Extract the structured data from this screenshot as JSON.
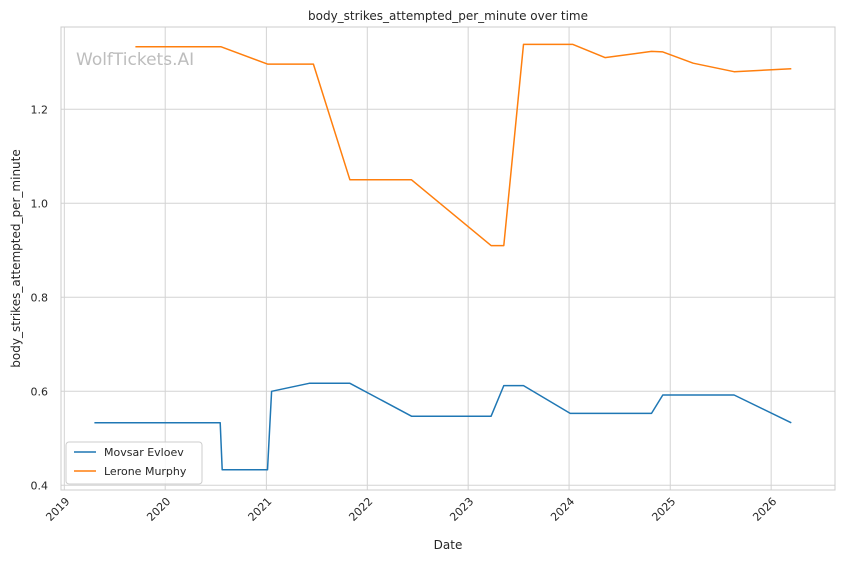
{
  "watermark": "WolfTickets.AI",
  "colors": {
    "grid": "#d3d3d3",
    "frame": "#cccccc",
    "text": "#262626",
    "watermark": "#bdbdbd"
  },
  "chart_data": {
    "type": "line",
    "title": "body_strikes_attempted_per_minute over time",
    "xlabel": "Date",
    "ylabel": "body_strikes_attempted_per_minute",
    "xlim": [
      "2018-12-20",
      "2026-08-20"
    ],
    "ylim": [
      0.39,
      1.375
    ],
    "grid": true,
    "legend_position": "lower-left",
    "x_ticks": [
      {
        "date": "2019-01-01",
        "label": "2019"
      },
      {
        "date": "2020-01-01",
        "label": "2020"
      },
      {
        "date": "2021-01-01",
        "label": "2021"
      },
      {
        "date": "2022-01-01",
        "label": "2022"
      },
      {
        "date": "2023-01-01",
        "label": "2023"
      },
      {
        "date": "2024-01-01",
        "label": "2024"
      },
      {
        "date": "2025-01-01",
        "label": "2025"
      },
      {
        "date": "2026-01-01",
        "label": "2026"
      }
    ],
    "y_ticks": [
      {
        "value": 0.4,
        "label": "0.4"
      },
      {
        "value": 0.6,
        "label": "0.6"
      },
      {
        "value": 0.8,
        "label": "0.8"
      },
      {
        "value": 1.0,
        "label": "1.0"
      },
      {
        "value": 1.2,
        "label": "1.2"
      }
    ],
    "series": [
      {
        "name": "Movsar Evloev",
        "color": "#1f77b4",
        "points": [
          [
            "2019-04-20",
            0.533
          ],
          [
            "2020-07-18",
            0.533
          ],
          [
            "2020-07-25",
            0.433
          ],
          [
            "2021-01-05",
            0.433
          ],
          [
            "2021-01-20",
            0.6
          ],
          [
            "2021-06-05",
            0.617
          ],
          [
            "2021-10-30",
            0.617
          ],
          [
            "2022-06-10",
            0.547
          ],
          [
            "2023-03-25",
            0.547
          ],
          [
            "2023-05-10",
            0.612
          ],
          [
            "2023-07-20",
            0.612
          ],
          [
            "2024-01-05",
            0.553
          ],
          [
            "2024-10-25",
            0.553
          ],
          [
            "2024-12-05",
            0.592
          ],
          [
            "2025-08-20",
            0.592
          ],
          [
            "2026-03-15",
            0.533
          ]
        ]
      },
      {
        "name": "Lerone Murphy",
        "color": "#ff7f0e",
        "points": [
          [
            "2019-09-15",
            1.333
          ],
          [
            "2020-07-20",
            1.333
          ],
          [
            "2021-01-05",
            1.296
          ],
          [
            "2021-06-20",
            1.296
          ],
          [
            "2021-10-30",
            1.05
          ],
          [
            "2022-06-10",
            1.05
          ],
          [
            "2023-03-25",
            0.91
          ],
          [
            "2023-05-10",
            0.91
          ],
          [
            "2023-07-20",
            1.338
          ],
          [
            "2024-01-15",
            1.338
          ],
          [
            "2024-05-10",
            1.31
          ],
          [
            "2024-10-25",
            1.323
          ],
          [
            "2024-12-05",
            1.322
          ],
          [
            "2025-03-25",
            1.298
          ],
          [
            "2025-08-20",
            1.28
          ],
          [
            "2026-03-15",
            1.286
          ]
        ]
      }
    ]
  }
}
